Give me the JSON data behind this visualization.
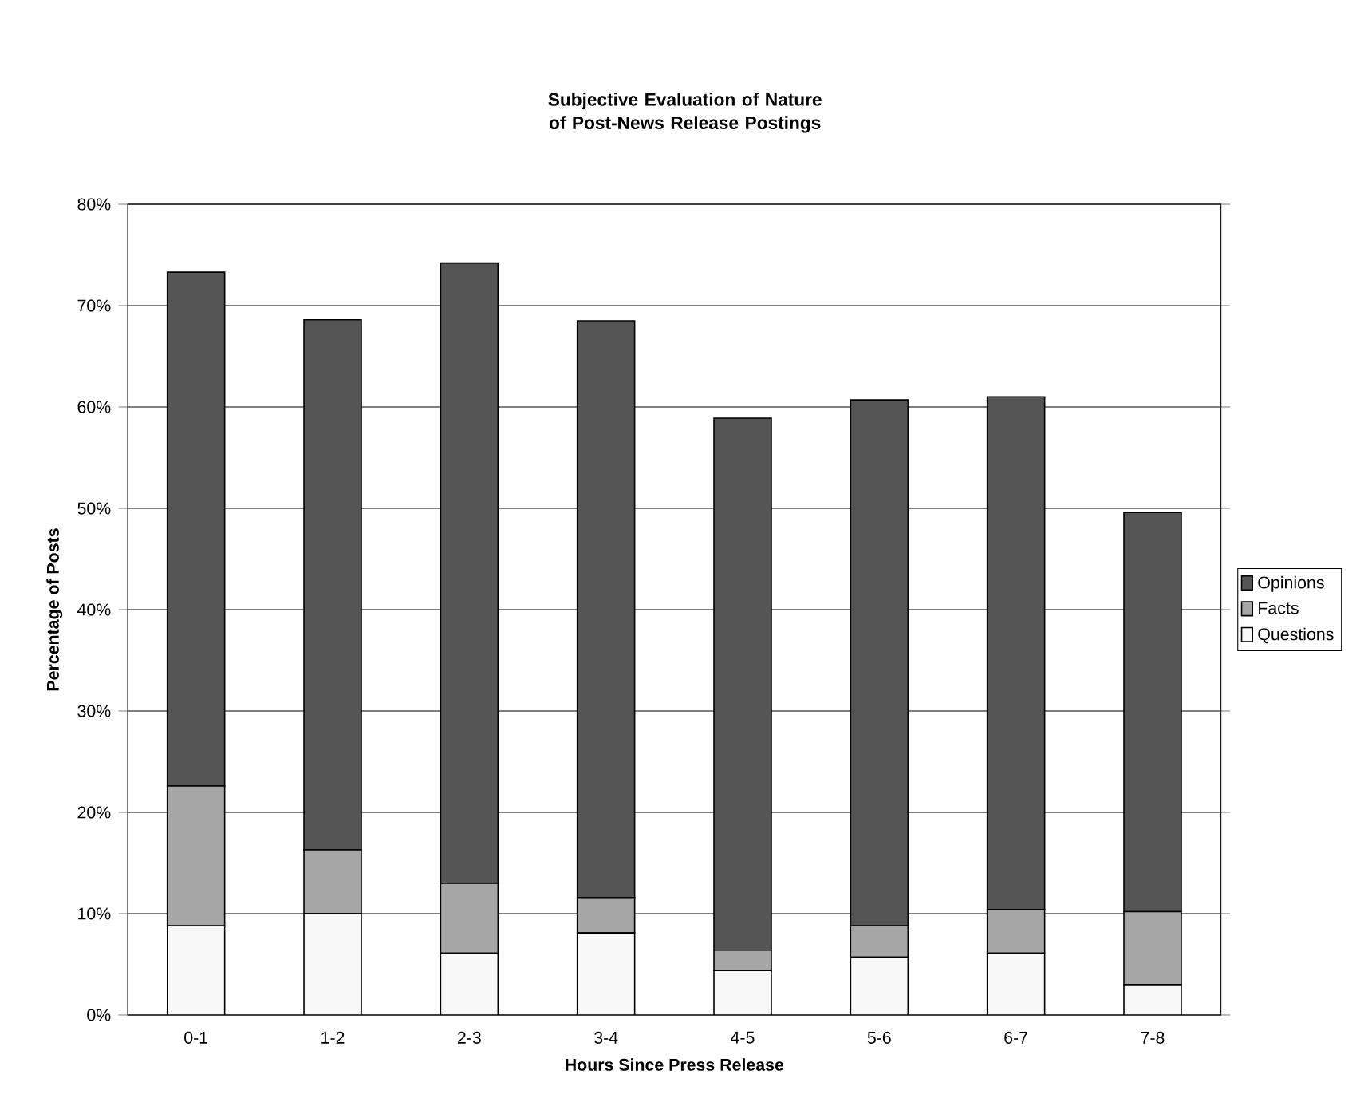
{
  "chart_data": {
    "type": "bar",
    "stacked": true,
    "title": "Subjective Evaluation of Nature of Post-News Release Postings",
    "xlabel": "Hours Since Press Release",
    "ylabel": "Percentage of Posts",
    "categories": [
      "0-1",
      "1-2",
      "2-3",
      "3-4",
      "4-5",
      "5-6",
      "6-7",
      "7-8"
    ],
    "series": [
      {
        "name": "Questions",
        "color": "#f8f8f8",
        "values": [
          8.8,
          10.0,
          6.1,
          8.1,
          4.4,
          5.7,
          6.1,
          3.0
        ]
      },
      {
        "name": "Facts",
        "color": "#a6a6a6",
        "values": [
          13.8,
          6.3,
          6.9,
          3.5,
          2.0,
          3.1,
          4.3,
          7.2
        ]
      },
      {
        "name": "Opinions",
        "color": "#555555",
        "values": [
          50.7,
          52.3,
          61.2,
          56.9,
          52.5,
          51.9,
          50.6,
          39.4
        ]
      }
    ],
    "ylim": [
      0,
      80
    ],
    "yticks": [
      {
        "value": 0,
        "label": "0%"
      },
      {
        "value": 10,
        "label": "10%"
      },
      {
        "value": 20,
        "label": "20%"
      },
      {
        "value": 30,
        "label": "30%"
      },
      {
        "value": 40,
        "label": "40%"
      },
      {
        "value": 50,
        "label": "50%"
      },
      {
        "value": 60,
        "label": "60%"
      },
      {
        "value": 70,
        "label": "70%"
      },
      {
        "value": 80,
        "label": "80%"
      }
    ],
    "grid": "y",
    "legend": "right"
  }
}
